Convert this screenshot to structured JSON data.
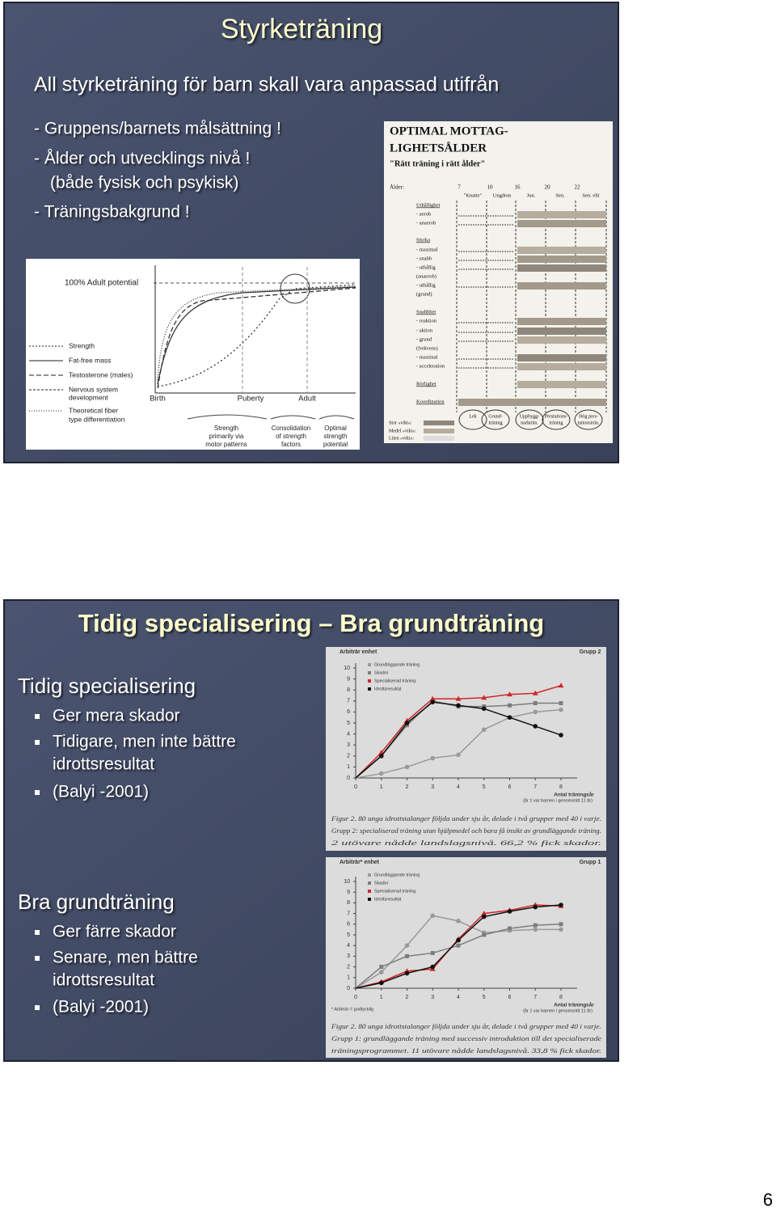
{
  "slide1": {
    "title": "Styrketräning",
    "lead": "All styrketräning för barn skall vara anpassad utifrån",
    "bullets": [
      "- Gruppens/barnets målsättning !",
      "- Ålder och utvecklings nivå !",
      "(både fysisk och psykisk)",
      "- Träningsbakgrund !"
    ],
    "figure_left": {
      "top_label": "100% Adult potential",
      "legend": [
        "Strength",
        "Fat-free mass",
        "Testosterone (males)",
        "Nervous system",
        "development",
        "Theoretical fiber",
        "type differentiation"
      ],
      "phases": [
        "Birth",
        "Puberty",
        "Adult"
      ],
      "stages": [
        [
          "Strength",
          "primarily via",
          "motor patterns"
        ],
        [
          "Consolidation",
          "of strength",
          "factors"
        ],
        [
          "Optimal",
          "strength",
          "potential"
        ]
      ]
    },
    "figure_right": {
      "title": [
        "OPTIMAL MOTTAG-",
        "LIGHETSÅLDER",
        "\"Rätt träning i rätt ålder\""
      ],
      "age_label": "Ålder:",
      "ages": [
        "7",
        "10",
        "16",
        "20",
        "22"
      ],
      "levels": [
        "\"Knatte\"",
        "Ungdom",
        "Jun.",
        "Sen.",
        "Sen. elit"
      ],
      "rows": [
        "Uthållighet",
        "- aerob",
        "- anaerob",
        "Styrka",
        "- maximal",
        "- snabb",
        "- uthållig",
        "(anaerob)",
        "- uthållig",
        "(grund)",
        "Snabbhet",
        "- reaktion",
        "- aktion",
        "- grund",
        "(frekvens)",
        "- maximal",
        "- acceleration",
        "Rörlighet",
        "Koordination"
      ],
      "phases": [
        [
          "Lek"
        ],
        [
          "Grund-",
          "träning"
        ],
        [
          "Uppbygg-",
          "nadsträn."
        ],
        [
          "Prestations-",
          "träning"
        ],
        [
          "Hög pres-",
          "tationsträn."
        ]
      ],
      "weights": [
        "Stor »vikt«:",
        "Medel »vikt«:",
        "Liten »vikt«:"
      ]
    }
  },
  "slide2": {
    "title": "Tidig specialisering – Bra grundträning",
    "sections": [
      {
        "heading": "Tidig specialisering",
        "bullets": [
          [
            "Ger mera skador"
          ],
          [
            "Tidigare, men inte bättre",
            "idrottsresultat"
          ],
          [
            "(Balyi -2001)"
          ]
        ]
      },
      {
        "heading": "Bra grundträning",
        "bullets": [
          [
            "Ger färre skador"
          ],
          [
            "Senare, men bättre",
            "idrottsresultat"
          ],
          [
            "(Balyi -2001)"
          ]
        ]
      }
    ],
    "charts": [
      {
        "type": "line",
        "y_label": "Arbiträr enhet",
        "group": "Grupp 2",
        "x_label": "Antal träningsår",
        "x_note": "(år 1 var barnen i genomsnitt 11 år)",
        "x": [
          0,
          1,
          2,
          3,
          4,
          5,
          6,
          7,
          8
        ],
        "xlim": [
          0,
          8
        ],
        "xticks": [
          0,
          1,
          2,
          3,
          4,
          5,
          6,
          7,
          8
        ],
        "ylim": [
          0,
          10
        ],
        "yticks": [
          0,
          1,
          2,
          3,
          4,
          5,
          6,
          7,
          8,
          9,
          10
        ],
        "series": [
          {
            "name": "Grundläggande träning",
            "color": "#9a9a9a",
            "values": [
              0,
              0.4,
              1.0,
              1.8,
              2.1,
              4.4,
              5.5,
              6.0,
              6.2
            ]
          },
          {
            "name": "Skador",
            "color": "#7d7d7d",
            "values": [
              0,
              2.0,
              4.8,
              7.0,
              6.5,
              6.5,
              6.6,
              6.8,
              6.8
            ]
          },
          {
            "name": "Specialiserad träning",
            "color": "#d02828",
            "values": [
              0,
              2.3,
              5.2,
              7.2,
              7.2,
              7.3,
              7.6,
              7.7,
              8.4
            ]
          },
          {
            "name": "Idrottsresultat",
            "color": "#111111",
            "values": [
              0,
              2.0,
              5.0,
              6.9,
              6.6,
              6.3,
              5.5,
              4.7,
              3.9
            ]
          }
        ],
        "caption": [
          "Figur 2. 80 unga idrottstalanger följda under sju år, delade i två grupper med 40 i varje.",
          "Grupp 2: specialiserad träning utan hjälpmedel och bara få insikt av grundläggande träning.",
          "2 utövare nådde landslagsnivå. 66,2 % fick skador."
        ]
      },
      {
        "type": "line",
        "y_label": "Arbiträr* enhet",
        "group": "Grupp 1",
        "x_label": "Antal träningsår",
        "x_note": "(år 1 var barnen i genomsnitt 11 år)",
        "footnote": "* Arbiträr = godtycklig",
        "x": [
          0,
          1,
          2,
          3,
          4,
          5,
          6,
          7,
          8
        ],
        "xlim": [
          0,
          8
        ],
        "xticks": [
          0,
          1,
          2,
          3,
          4,
          5,
          6,
          7,
          8
        ],
        "ylim": [
          0,
          10
        ],
        "yticks": [
          0,
          1,
          2,
          3,
          4,
          5,
          6,
          7,
          8,
          9,
          10
        ],
        "series": [
          {
            "name": "Grundläggande träning",
            "color": "#9a9a9a",
            "values": [
              0,
              1.5,
              4.0,
              6.8,
              6.3,
              5.2,
              5.4,
              5.5,
              5.5
            ]
          },
          {
            "name": "Skador",
            "color": "#7d7d7d",
            "values": [
              0,
              2.0,
              3.0,
              3.3,
              4.0,
              5.0,
              5.6,
              5.9,
              6.0
            ]
          },
          {
            "name": "Specialiserad träning",
            "color": "#d02828",
            "values": [
              0,
              0.6,
              1.6,
              1.8,
              4.6,
              7.0,
              7.3,
              7.8,
              7.7
            ]
          },
          {
            "name": "Idrottsresultat",
            "color": "#111111",
            "values": [
              0,
              0.5,
              1.4,
              2.0,
              4.5,
              6.7,
              7.2,
              7.6,
              7.8
            ]
          }
        ],
        "caption": [
          "Figur 2. 80 unga idrottstalanger följda under sju år, delade i två grupper med 40 i varje.",
          "Grupp 1: grundläggande träning med successiv introduktion till det specialiserade",
          "träningsprogrammet. 11 utövare nådde landslagsnivå. 33,8 % fick skador."
        ]
      }
    ]
  },
  "page_number": "6"
}
